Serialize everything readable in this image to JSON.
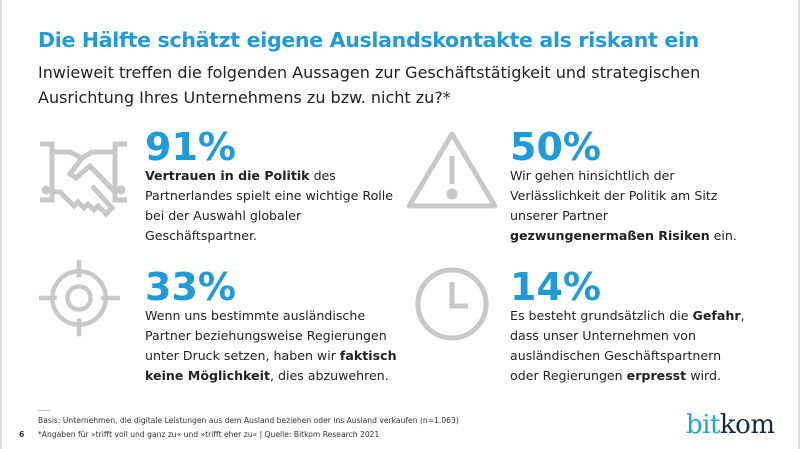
{
  "title": "Die Hälfte schätzt eigene Auslandskontakte als riskant ein",
  "subtitle": "Inwieweit treffen die folgenden Aussagen zur Geschäftstätigkeit und strategischen Ausrichtung Ihres Unternehmens zu bzw. nicht zu?*",
  "colors": {
    "accent": "#1f9bd7",
    "icon": "#c8c8c8",
    "text": "#222222"
  },
  "stats": [
    {
      "icon": "handshake-icon",
      "value": "91%",
      "segments": [
        {
          "t": "Vertrauen in die Politik",
          "b": true
        },
        {
          "t": " des Partnerlandes spielt eine wichtige Rolle bei der Auswahl globaler Geschäftspartner.",
          "b": false
        }
      ]
    },
    {
      "icon": "warning-icon",
      "value": "50%",
      "segments": [
        {
          "t": "Wir gehen hinsichtlich der Verlässlichkeit der Politik am Sitz unserer Partner ",
          "b": false
        },
        {
          "t": "gezwungenermaßen Risiken",
          "b": true
        },
        {
          "t": " ein.",
          "b": false
        }
      ]
    },
    {
      "icon": "target-icon",
      "value": "33%",
      "segments": [
        {
          "t": "Wenn uns bestimmte ausländische Partner beziehungsweise Regierungen unter Druck setzen, haben wir ",
          "b": false
        },
        {
          "t": "faktisch keine Möglichkeit",
          "b": true
        },
        {
          "t": ", dies abzuwehren.",
          "b": false
        }
      ]
    },
    {
      "icon": "clock-icon",
      "value": "14%",
      "segments": [
        {
          "t": "Es besteht grundsätzlich die ",
          "b": false
        },
        {
          "t": "Gefahr",
          "b": true
        },
        {
          "t": ", dass unser Unternehmen von ausländischen Geschäftspartnern oder Regierungen ",
          "b": false
        },
        {
          "t": "erpresst",
          "b": true
        },
        {
          "t": " wird.",
          "b": false
        }
      ]
    }
  ],
  "footer": {
    "basis": "Basis: Unternehmen, die digitale Leistungen aus dem Ausland beziehen oder ins Ausland verkaufen (n=1.063)",
    "note": "*Angaben für »trifft voll und ganz zu« und »trifft eher zu« | Quelle: Bitkom Research 2021",
    "page": "6"
  },
  "logo": {
    "part1": "bit",
    "part2": "kom"
  }
}
